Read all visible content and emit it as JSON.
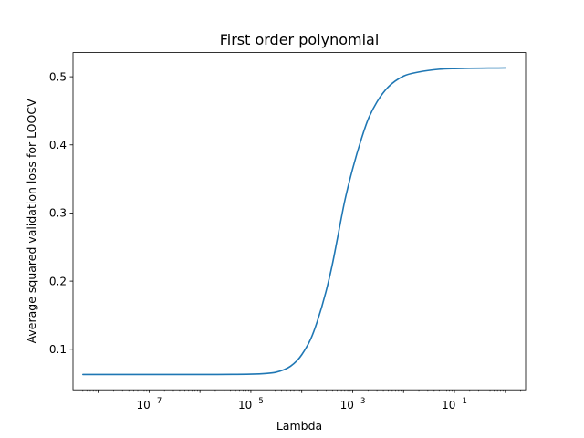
{
  "chart_data": {
    "type": "line",
    "title": "First order polynomial",
    "xlabel": "Lambda",
    "ylabel": "Average squared validation loss for LOOCV",
    "x_scale": "log",
    "xlim": [
      3.2e-09,
      2.5
    ],
    "ylim": [
      0.0405,
      0.5355
    ],
    "x_ticks": [
      {
        "base": "10",
        "exponent": "−7",
        "value": 1e-07
      },
      {
        "base": "10",
        "exponent": "−5",
        "value": 1e-05
      },
      {
        "base": "10",
        "exponent": "−3",
        "value": 0.001
      },
      {
        "base": "10",
        "exponent": "−1",
        "value": 0.1
      }
    ],
    "y_ticks": [
      {
        "label": "0.1",
        "value": 0.1
      },
      {
        "label": "0.2",
        "value": 0.2
      },
      {
        "label": "0.3",
        "value": 0.3
      },
      {
        "label": "0.4",
        "value": 0.4
      },
      {
        "label": "0.5",
        "value": 0.5
      }
    ],
    "grid": false,
    "series": [
      {
        "color": "#1f77b4",
        "points": [
          [
            5e-09,
            0.063
          ],
          [
            1e-07,
            0.063
          ],
          [
            1e-06,
            0.063
          ],
          [
            1e-05,
            0.0635
          ],
          [
            2e-05,
            0.0645
          ],
          [
            3e-05,
            0.066
          ],
          [
            4.5e-05,
            0.07
          ],
          [
            6e-05,
            0.075
          ],
          [
            8e-05,
            0.083
          ],
          [
            0.0001,
            0.092
          ],
          [
            0.00015,
            0.115
          ],
          [
            0.0002,
            0.14
          ],
          [
            0.0003,
            0.185
          ],
          [
            0.0004,
            0.225
          ],
          [
            0.0005,
            0.262
          ],
          [
            0.0007,
            0.318
          ],
          [
            0.001,
            0.365
          ],
          [
            0.0015,
            0.41
          ],
          [
            0.002,
            0.437
          ],
          [
            0.003,
            0.463
          ],
          [
            0.005,
            0.485
          ],
          [
            0.01,
            0.501
          ],
          [
            0.02,
            0.507
          ],
          [
            0.05,
            0.511
          ],
          [
            0.1,
            0.512
          ],
          [
            1,
            0.513
          ]
        ]
      }
    ]
  }
}
